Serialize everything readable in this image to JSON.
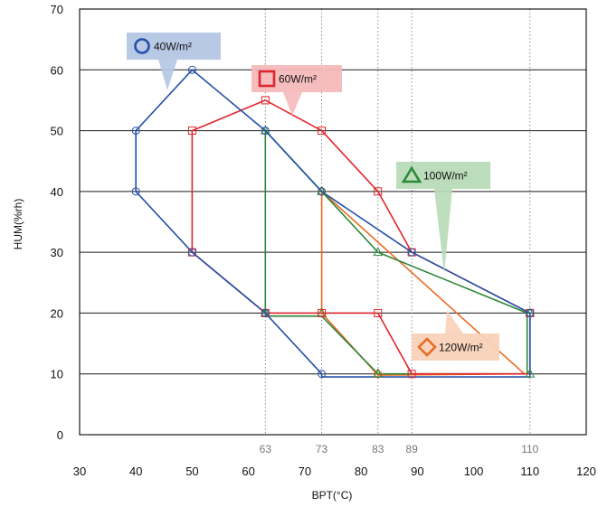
{
  "chart_data": {
    "type": "line",
    "xlabel": "BPT(°C)",
    "ylabel": "HUM(%rh)",
    "xlim": [
      30,
      120
    ],
    "ylim": [
      0,
      70
    ],
    "x_ticks": [
      "30",
      "40",
      "50",
      "60",
      "70",
      "80",
      "90",
      "100",
      "110",
      "120"
    ],
    "y_ticks": [
      "0",
      "10",
      "20",
      "30",
      "40",
      "50",
      "60",
      "70"
    ],
    "reference_lines_x": [
      63,
      73,
      83,
      89,
      110
    ],
    "reference_labels": [
      "63",
      "73",
      "83",
      "89",
      "110"
    ],
    "y_grid": true,
    "series": [
      {
        "name": "40W/m²",
        "marker": "circle",
        "color": "#2350a8",
        "legend_bg": "#b4c6e4",
        "points": [
          [
            40,
            40
          ],
          [
            40,
            50
          ],
          [
            50,
            60
          ],
          [
            63,
            50
          ],
          [
            73,
            40
          ],
          [
            89,
            30
          ],
          [
            110,
            20
          ],
          [
            110,
            9.5
          ],
          [
            73,
            9.5
          ],
          [
            73,
            10
          ],
          [
            63,
            20
          ],
          [
            50,
            30
          ],
          [
            40,
            40
          ]
        ],
        "marked_points": [
          [
            40,
            40
          ],
          [
            40,
            50
          ],
          [
            50,
            60
          ],
          [
            63,
            50
          ],
          [
            73,
            40
          ],
          [
            89,
            30
          ],
          [
            110,
            20
          ],
          [
            73,
            10
          ],
          [
            63,
            20
          ],
          [
            50,
            30
          ]
        ]
      },
      {
        "name": "60W/m²",
        "marker": "square",
        "color": "#e0262d",
        "legend_bg": "#f6b9bc",
        "points": [
          [
            50,
            30
          ],
          [
            50,
            50
          ],
          [
            63,
            55
          ],
          [
            73,
            50
          ],
          [
            83,
            40
          ],
          [
            89,
            30
          ],
          [
            110,
            20
          ],
          [
            110,
            10
          ],
          [
            89,
            10
          ],
          [
            83,
            20
          ],
          [
            63,
            20
          ],
          [
            50,
            30
          ]
        ],
        "marked_points": [
          [
            50,
            30
          ],
          [
            50,
            50
          ],
          [
            63,
            55
          ],
          [
            73,
            50
          ],
          [
            83,
            40
          ],
          [
            89,
            30
          ],
          [
            110,
            20
          ],
          [
            89,
            10
          ],
          [
            83,
            20
          ],
          [
            73,
            20
          ],
          [
            63,
            20
          ]
        ]
      },
      {
        "name": "100W/m²",
        "marker": "triangle",
        "color": "#2e8838",
        "legend_bg": "#b7dbb7",
        "points": [
          [
            63,
            50
          ],
          [
            83,
            30
          ],
          [
            109.5,
            20
          ],
          [
            109.5,
            10
          ],
          [
            83,
            10
          ],
          [
            73,
            19.5
          ],
          [
            63,
            19.5
          ],
          [
            63,
            50
          ]
        ],
        "marked_points": [
          [
            63,
            50
          ],
          [
            73,
            40
          ],
          [
            83,
            30
          ],
          [
            110,
            20
          ],
          [
            110,
            10
          ],
          [
            83,
            10
          ],
          [
            73,
            20
          ],
          [
            63,
            20
          ]
        ]
      },
      {
        "name": "120W/m²",
        "marker": "diamond",
        "color": "#ec6a23",
        "legend_bg": "#f9d2b9",
        "points": [
          [
            73,
            40
          ],
          [
            109,
            10
          ],
          [
            83,
            9.8
          ],
          [
            73,
            20
          ],
          [
            73,
            40
          ]
        ],
        "marked_points": [
          [
            73,
            40
          ],
          [
            83,
            10
          ]
        ]
      }
    ]
  }
}
